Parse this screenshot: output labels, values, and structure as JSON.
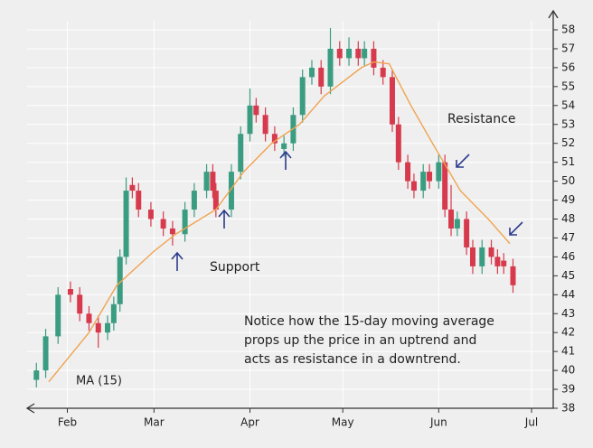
{
  "chart_data": {
    "type": "candlestick",
    "x": [
      22,
      25,
      29,
      33,
      36,
      39,
      42,
      45,
      47,
      49,
      51,
      53,
      55,
      59,
      63,
      66,
      70,
      73,
      77,
      79,
      80,
      85,
      88,
      91,
      93,
      96,
      99,
      102,
      105,
      108,
      111,
      114,
      117,
      120,
      123,
      126,
      128,
      131,
      134,
      137,
      139,
      142,
      144,
      147,
      149,
      152,
      154,
      156,
      158,
      161,
      163,
      166,
      169,
      171,
      173,
      176
    ],
    "open": [
      39.5,
      40,
      41.8,
      44.3,
      44,
      43,
      42.5,
      42,
      42.5,
      43.5,
      46,
      49.8,
      49.5,
      48.5,
      48,
      47.5,
      47.2,
      48.5,
      49.5,
      50.5,
      49.5,
      48.5,
      50.5,
      52.5,
      54,
      53.5,
      52.5,
      51.7,
      52,
      53.5,
      55.5,
      56,
      55,
      57,
      56.5,
      57,
      56.5,
      57,
      56,
      55.5,
      53,
      51,
      50,
      49.5,
      50.5,
      50,
      51,
      48.5,
      47.5,
      48,
      46.5,
      45.5,
      46.5,
      46,
      45.8,
      45.5
    ],
    "high": [
      40.4,
      42.2,
      44.4,
      44.7,
      44.4,
      43.4,
      42.9,
      42.9,
      43.9,
      46.4,
      50.2,
      50.2,
      49.9,
      48.9,
      48.4,
      47.9,
      48.9,
      49.9,
      50.9,
      50.9,
      49.9,
      50.9,
      52.9,
      54.9,
      54.4,
      53.9,
      52.9,
      52.4,
      53.9,
      55.9,
      56.4,
      56.4,
      58.1,
      57.4,
      57.6,
      57.4,
      57.4,
      57.4,
      56.4,
      55.9,
      53.4,
      51.4,
      50.4,
      50.9,
      50.9,
      51.4,
      51.4,
      49.8,
      48.4,
      48.4,
      46.9,
      46.9,
      46.9,
      46.4,
      46.2,
      45.9
    ],
    "low": [
      39.1,
      39.6,
      41.4,
      43.6,
      42.6,
      42.1,
      41.2,
      41.6,
      42.1,
      43.1,
      45.6,
      49.1,
      48.1,
      47.6,
      47.1,
      46.6,
      46.8,
      48.1,
      49.1,
      49.1,
      48.1,
      48.1,
      50.1,
      52.1,
      53.1,
      52.1,
      51.6,
      51.3,
      51.6,
      53.1,
      55.1,
      54.6,
      54.6,
      56.1,
      56.1,
      56.1,
      56.1,
      55.6,
      55.1,
      52.6,
      50.6,
      49.6,
      49.1,
      49.1,
      49.6,
      49.6,
      48.1,
      47.1,
      47.1,
      46.1,
      45.1,
      45.1,
      45.6,
      45.1,
      45.1,
      44.1
    ],
    "close": [
      40,
      41.8,
      44,
      44,
      43,
      42.5,
      42,
      42.5,
      43.5,
      46,
      49.5,
      49.5,
      48.5,
      48,
      47.5,
      47.2,
      48.5,
      49.5,
      50.5,
      49.5,
      48.5,
      50.5,
      52.5,
      54,
      53.5,
      52.5,
      52,
      52,
      53.5,
      55.5,
      56,
      55,
      57,
      56.5,
      57,
      56.5,
      57,
      56,
      55.5,
      53,
      51,
      50,
      49.5,
      50.5,
      50,
      51,
      48.5,
      47.5,
      48,
      46.5,
      45.5,
      46.5,
      46,
      45.5,
      45.5,
      44.5
    ],
    "up_color": "#3a9c80",
    "down_color": "#d63a4c",
    "series": [
      {
        "name": "MA (15)",
        "color": "#f0a350",
        "x": [
          26,
          39,
          48,
          60,
          67,
          80,
          89,
          98,
          107,
          115,
          127,
          131,
          136,
          143,
          150,
          159,
          168,
          175
        ],
        "values": [
          39.4,
          42,
          44.5,
          46.3,
          47.2,
          48.5,
          50.5,
          52,
          53,
          54.5,
          56,
          56.3,
          56.2,
          54,
          52,
          49.5,
          48,
          46.7
        ]
      }
    ],
    "xlim": [
      19,
      189
    ],
    "xticks": [
      {
        "value": 32,
        "label": "Feb"
      },
      {
        "value": 60,
        "label": "Mar"
      },
      {
        "value": 91,
        "label": "Apr"
      },
      {
        "value": 121,
        "label": "May"
      },
      {
        "value": 152,
        "label": "Jun"
      },
      {
        "value": 182,
        "label": "Jul"
      }
    ],
    "ylim": [
      38,
      58
    ],
    "yticks": [
      38,
      39,
      40,
      41,
      42,
      43,
      44,
      45,
      46,
      47,
      48,
      49,
      50,
      51,
      52,
      53,
      54,
      55,
      56,
      57,
      58
    ],
    "grid": true,
    "annotations": [
      "Resistance",
      "Support"
    ],
    "note": [
      "Notice how the 15-day moving average",
      "props up the price in an uptrend and",
      "acts as resistance in a downtrend."
    ]
  }
}
